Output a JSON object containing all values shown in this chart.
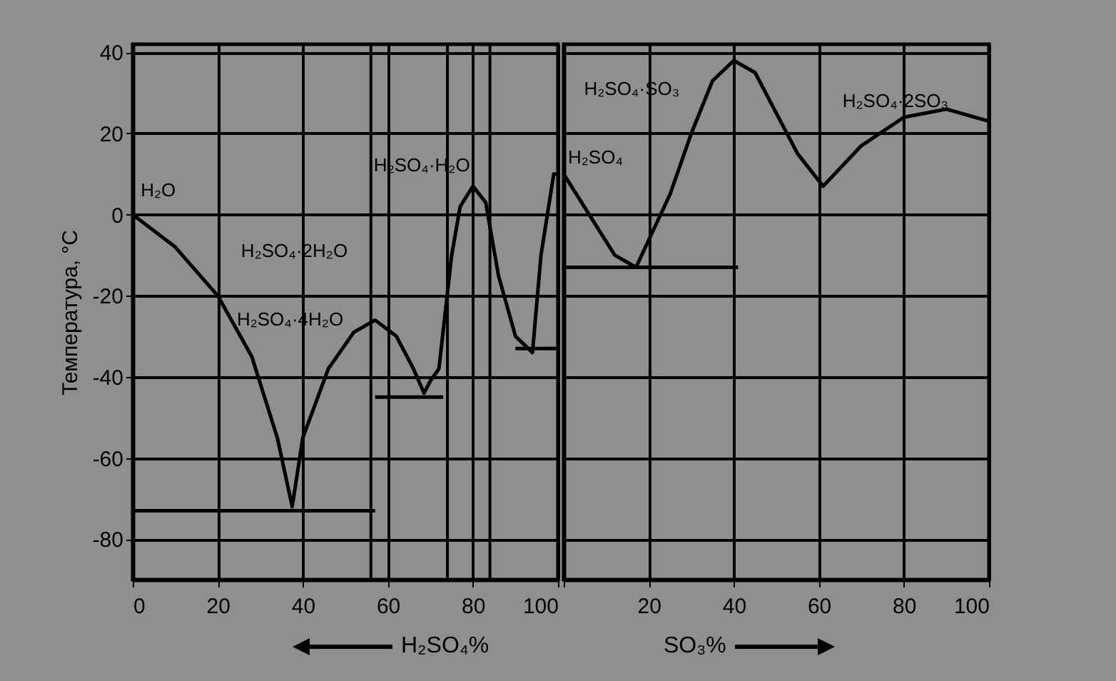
{
  "chart_data": [
    {
      "type": "line",
      "ylabel": "Температура, °C",
      "xlabel": "H₂SO₄%",
      "xlim": [
        0,
        100
      ],
      "ylim": [
        -90,
        42
      ],
      "xticks": [
        0,
        20,
        40,
        60,
        80,
        100
      ],
      "yticks": [
        -80,
        -60,
        -40,
        -20,
        0,
        20,
        40
      ],
      "grid": true,
      "line_style": "solid",
      "series": [
        {
          "color": "#000000",
          "x": [
            0,
            10,
            20,
            28,
            34,
            37.5,
            40,
            46,
            52,
            57,
            62,
            66,
            68.5,
            70,
            72,
            75,
            77,
            80,
            83,
            86,
            90,
            94,
            96,
            99,
            100
          ],
          "values": [
            0,
            -8,
            -20,
            -35,
            -55,
            -72,
            -55,
            -38,
            -29,
            -26,
            -30,
            -38,
            -44,
            -41,
            -38,
            -10,
            2,
            7,
            3,
            -15,
            -30,
            -34,
            -10,
            10,
            10
          ]
        },
        {
          "color": "#000000",
          "x": [
            0,
            57
          ],
          "values": [
            -73,
            -73
          ]
        },
        {
          "color": "#000000",
          "x": [
            57,
            73
          ],
          "values": [
            -45,
            -45
          ]
        },
        {
          "color": "#000000",
          "x": [
            90,
            100
          ],
          "values": [
            -33,
            -33
          ]
        }
      ],
      "ref_lines": [
        {
          "axis": "x",
          "value": 56
        },
        {
          "axis": "x",
          "value": 74
        },
        {
          "axis": "x",
          "value": 84
        }
      ],
      "annotations": [
        "H₂O",
        "H₂SO₄·2H₂O",
        "H₂SO₄·4H₂O",
        "H₂SO₄·H₂O"
      ]
    },
    {
      "type": "line",
      "xlabel": "SO₃%",
      "xlim": [
        0,
        100
      ],
      "ylim": [
        -90,
        42
      ],
      "xticks": [
        {
          "value": 0,
          "label": null
        },
        20,
        40,
        60,
        80,
        100
      ],
      "yticks": [
        -80,
        -60,
        -40,
        -20,
        0,
        20,
        40
      ],
      "grid": true,
      "line_style": "solid",
      "tick_labels": "x",
      "series": [
        {
          "color": "#000000",
          "x": [
            0,
            6,
            12,
            17,
            25,
            30,
            35,
            40,
            45,
            50,
            55,
            61,
            70,
            80,
            90,
            100
          ],
          "values": [
            10,
            0,
            -10,
            -13,
            5,
            20,
            33,
            38,
            35,
            25,
            15,
            7,
            17,
            24,
            26,
            23
          ]
        },
        {
          "color": "#000000",
          "x": [
            0,
            41
          ],
          "values": [
            -13,
            -13
          ]
        }
      ],
      "annotations": [
        "H₂SO₄",
        "H₂SO₄·SO₃",
        "H₂SO₄·2SO₃"
      ]
    }
  ]
}
